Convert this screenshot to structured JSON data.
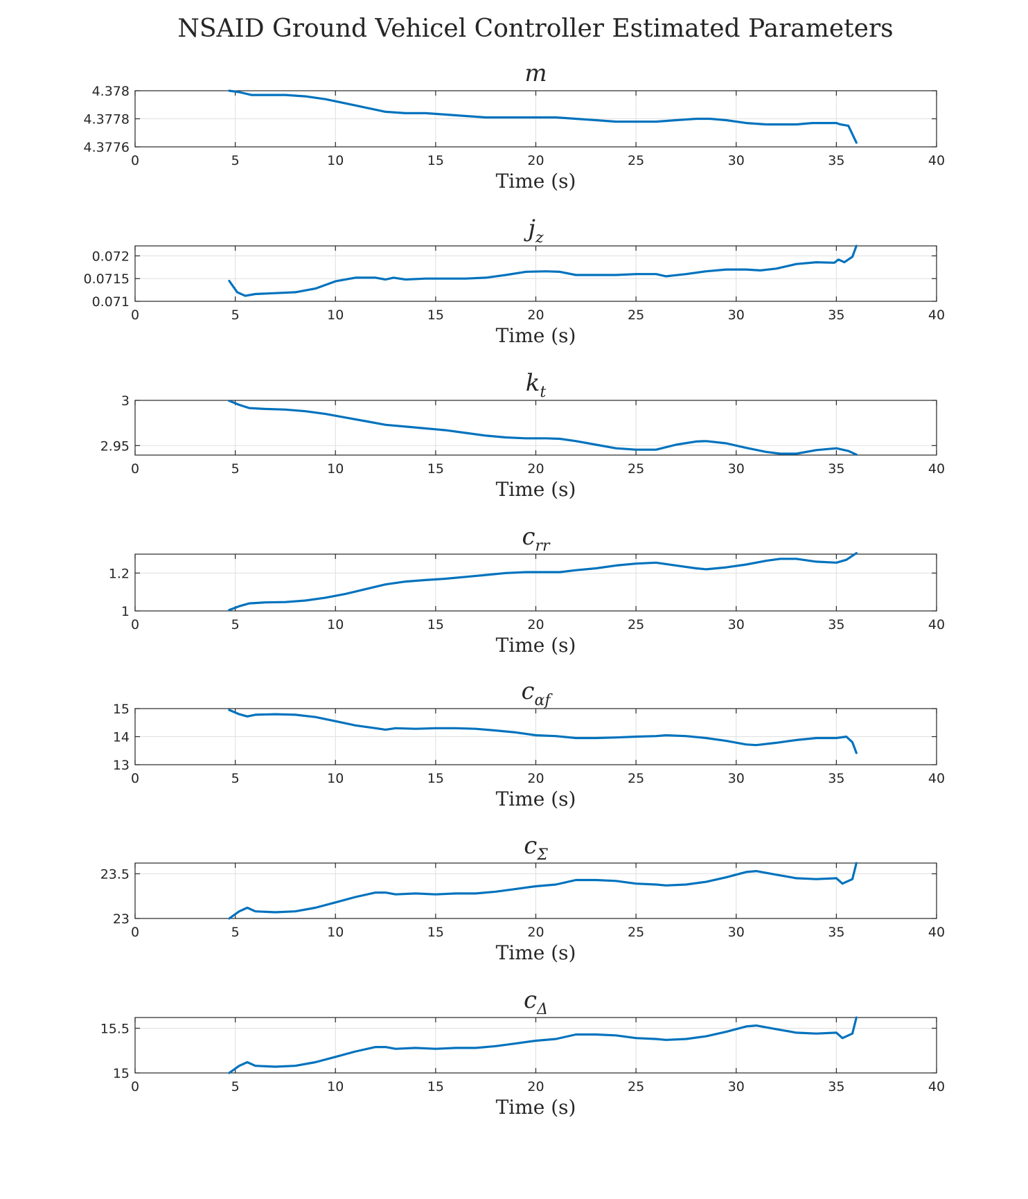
{
  "figure_title": "NSAID Ground Vehicel Controller Estimated Parameters",
  "colors": {
    "line": "#0072BD",
    "grid": "#dfdfdf",
    "axis": "#262626"
  },
  "chart_data": [
    {
      "type": "line",
      "title_main": "m",
      "title_sub": "",
      "xlabel": "Time (s)",
      "ylabel": "",
      "xlim": [
        0,
        40
      ],
      "ylim": [
        4.3776,
        4.378
      ],
      "xticks": [
        0,
        5,
        10,
        15,
        20,
        25,
        30,
        35,
        40
      ],
      "yticks": [
        4.3776,
        4.3778,
        4.378
      ],
      "ytick_labels": [
        "4.3776",
        "4.3778",
        "4.378"
      ],
      "grid": true,
      "series": [
        {
          "x": [
            4.7,
            5.2,
            5.8,
            6.5,
            7.5,
            8.5,
            9.5,
            10.5,
            11.5,
            12.5,
            13.5,
            14.5,
            15.5,
            16.5,
            17.5,
            18.5,
            19.5,
            20.5,
            21.0,
            22.0,
            23.0,
            24.0,
            25.0,
            26.0,
            27.0,
            28.0,
            28.7,
            29.5,
            30.5,
            31.5,
            32.2,
            33.0,
            33.8,
            35.0,
            35.2,
            35.6,
            36.0
          ],
          "y": [
            4.378,
            4.37799,
            4.37797,
            4.37797,
            4.37797,
            4.37796,
            4.37794,
            4.37791,
            4.37788,
            4.37785,
            4.37784,
            4.37784,
            4.37783,
            4.37782,
            4.37781,
            4.37781,
            4.37781,
            4.37781,
            4.37781,
            4.3778,
            4.37779,
            4.37778,
            4.37778,
            4.37778,
            4.37779,
            4.3778,
            4.3778,
            4.37779,
            4.37777,
            4.37776,
            4.37776,
            4.37776,
            4.37777,
            4.37777,
            4.37776,
            4.37775,
            4.37763
          ]
        }
      ]
    },
    {
      "type": "line",
      "title_main": "j",
      "title_sub": "z",
      "xlabel": "Time (s)",
      "ylabel": "",
      "xlim": [
        0,
        40
      ],
      "ylim": [
        0.071,
        0.07222
      ],
      "xticks": [
        0,
        5,
        10,
        15,
        20,
        25,
        30,
        35,
        40
      ],
      "yticks": [
        0.071,
        0.0715,
        0.072
      ],
      "ytick_labels": [
        "0.071",
        "0.0715",
        "0.072"
      ],
      "grid": true,
      "series": [
        {
          "x": [
            4.7,
            5.1,
            5.5,
            6.0,
            7.0,
            8.0,
            9.0,
            10.0,
            11.0,
            12.0,
            12.5,
            12.9,
            13.5,
            14.5,
            15.5,
            16.5,
            17.5,
            18.5,
            19.5,
            20.5,
            21.2,
            22.0,
            23.0,
            24.0,
            25.0,
            26.0,
            26.5,
            27.5,
            28.5,
            29.5,
            30.5,
            31.2,
            32.0,
            33.0,
            34.0,
            34.9,
            35.1,
            35.4,
            35.8,
            36.0
          ],
          "y": [
            0.07145,
            0.0712,
            0.07112,
            0.07116,
            0.07118,
            0.0712,
            0.07128,
            0.07144,
            0.07152,
            0.07152,
            0.07148,
            0.07152,
            0.07148,
            0.0715,
            0.0715,
            0.0715,
            0.07152,
            0.07158,
            0.07165,
            0.07166,
            0.07165,
            0.07158,
            0.07158,
            0.07158,
            0.0716,
            0.0716,
            0.07155,
            0.0716,
            0.07166,
            0.0717,
            0.0717,
            0.07168,
            0.07172,
            0.07182,
            0.07186,
            0.07185,
            0.07192,
            0.07186,
            0.07198,
            0.07222
          ]
        }
      ]
    },
    {
      "type": "line",
      "title_main": "k",
      "title_sub": "t",
      "xlabel": "Time (s)",
      "ylabel": "",
      "xlim": [
        0,
        40
      ],
      "ylim": [
        2.9395,
        3
      ],
      "xticks": [
        0,
        5,
        10,
        15,
        20,
        25,
        30,
        35,
        40
      ],
      "yticks": [
        2.95,
        3
      ],
      "ytick_labels": [
        "2.95",
        "3"
      ],
      "grid": true,
      "series": [
        {
          "x": [
            4.7,
            5.2,
            5.7,
            6.5,
            7.5,
            8.5,
            9.5,
            10.5,
            11.5,
            12.5,
            13.5,
            14.5,
            15.5,
            16.5,
            17.5,
            18.5,
            19.5,
            20.5,
            21.2,
            22.0,
            23.0,
            24.0,
            25.0,
            26.0,
            27.0,
            28.0,
            28.5,
            29.5,
            30.5,
            31.5,
            32.2,
            33.0,
            34.0,
            35.0,
            35.6,
            36.0
          ],
          "y": [
            2.9995,
            2.995,
            2.9915,
            2.9905,
            2.9898,
            2.988,
            2.985,
            2.981,
            2.977,
            2.973,
            2.971,
            2.969,
            2.967,
            2.964,
            2.961,
            2.959,
            2.958,
            2.958,
            2.9575,
            2.955,
            2.951,
            2.947,
            2.9455,
            2.9455,
            2.951,
            2.9545,
            2.955,
            2.9525,
            2.9475,
            2.943,
            2.941,
            2.941,
            2.945,
            2.947,
            2.944,
            2.94
          ]
        }
      ]
    },
    {
      "type": "line",
      "title_main": "c",
      "title_sub": "rr",
      "xlabel": "Time (s)",
      "ylabel": "",
      "xlim": [
        0,
        40
      ],
      "ylim": [
        1,
        1.3
      ],
      "xticks": [
        0,
        5,
        10,
        15,
        20,
        25,
        30,
        35,
        40
      ],
      "yticks": [
        1,
        1.2
      ],
      "ytick_labels": [
        "1",
        "1.2"
      ],
      "grid": true,
      "series": [
        {
          "x": [
            4.7,
            5.2,
            5.7,
            6.5,
            7.5,
            8.5,
            9.5,
            10.5,
            11.5,
            12.5,
            13.5,
            14.5,
            15.5,
            16.5,
            17.5,
            18.5,
            19.5,
            20.5,
            21.2,
            22.0,
            23.0,
            24.0,
            25.0,
            26.0,
            27.0,
            28.0,
            28.5,
            29.5,
            30.5,
            31.5,
            32.2,
            33.0,
            34.0,
            35.0,
            35.5,
            36.0
          ],
          "y": [
            1.005,
            1.025,
            1.04,
            1.045,
            1.047,
            1.055,
            1.07,
            1.09,
            1.115,
            1.14,
            1.155,
            1.163,
            1.17,
            1.18,
            1.19,
            1.2,
            1.205,
            1.205,
            1.205,
            1.215,
            1.225,
            1.24,
            1.25,
            1.255,
            1.24,
            1.225,
            1.22,
            1.23,
            1.245,
            1.265,
            1.275,
            1.275,
            1.26,
            1.255,
            1.27,
            1.305
          ]
        }
      ]
    },
    {
      "type": "line",
      "title_main": "c",
      "title_sub": "αf",
      "xlabel": "Time (s)",
      "ylabel": "",
      "xlim": [
        0,
        40
      ],
      "ylim": [
        13,
        15
      ],
      "xticks": [
        0,
        5,
        10,
        15,
        20,
        25,
        30,
        35,
        40
      ],
      "yticks": [
        13,
        14,
        15
      ],
      "ytick_labels": [
        "13",
        "14",
        "15"
      ],
      "grid": true,
      "series": [
        {
          "x": [
            4.7,
            5.2,
            5.6,
            6.0,
            7.0,
            8.0,
            9.0,
            10.0,
            11.0,
            12.0,
            12.5,
            13.0,
            14.0,
            15.0,
            16.0,
            17.0,
            18.0,
            19.0,
            20.0,
            21.0,
            22.0,
            23.0,
            24.0,
            25.0,
            26.0,
            26.5,
            27.5,
            28.5,
            29.5,
            30.5,
            31.0,
            32.0,
            33.0,
            34.0,
            35.0,
            35.5,
            35.8,
            36.0
          ],
          "y": [
            14.95,
            14.8,
            14.72,
            14.78,
            14.8,
            14.78,
            14.7,
            14.55,
            14.4,
            14.3,
            14.25,
            14.3,
            14.28,
            14.3,
            14.3,
            14.28,
            14.22,
            14.15,
            14.05,
            14.02,
            13.95,
            13.95,
            13.97,
            14.0,
            14.02,
            14.05,
            14.02,
            13.95,
            13.85,
            13.72,
            13.7,
            13.78,
            13.88,
            13.95,
            13.95,
            14.0,
            13.8,
            13.42
          ]
        }
      ]
    },
    {
      "type": "line",
      "title_main": "c",
      "title_sub": "Σ",
      "xlabel": "Time (s)",
      "ylabel": "",
      "xlim": [
        0,
        40
      ],
      "ylim": [
        23,
        23.62
      ],
      "xticks": [
        0,
        5,
        10,
        15,
        20,
        25,
        30,
        35,
        40
      ],
      "yticks": [
        23,
        23.5
      ],
      "ytick_labels": [
        "23",
        "23.5"
      ],
      "grid": true,
      "series": [
        {
          "x": [
            4.7,
            5.2,
            5.6,
            6.0,
            7.0,
            8.0,
            9.0,
            10.0,
            11.0,
            12.0,
            12.5,
            13.0,
            14.0,
            15.0,
            16.0,
            17.0,
            18.0,
            19.0,
            20.0,
            21.0,
            22.0,
            23.0,
            24.0,
            25.0,
            26.0,
            26.5,
            27.5,
            28.5,
            29.5,
            30.5,
            31.0,
            32.0,
            33.0,
            34.0,
            35.0,
            35.3,
            35.8,
            36.0
          ],
          "y": [
            23.0,
            23.08,
            23.12,
            23.08,
            23.07,
            23.08,
            23.12,
            23.18,
            23.24,
            23.29,
            23.29,
            23.27,
            23.28,
            23.27,
            23.28,
            23.28,
            23.3,
            23.33,
            23.36,
            23.38,
            23.43,
            23.43,
            23.42,
            23.39,
            23.38,
            23.37,
            23.38,
            23.41,
            23.46,
            23.52,
            23.53,
            23.49,
            23.45,
            23.44,
            23.45,
            23.39,
            23.44,
            23.62
          ]
        }
      ]
    },
    {
      "type": "line",
      "title_main": "c",
      "title_sub": "Δ",
      "xlabel": "Time (s)",
      "ylabel": "",
      "xlim": [
        0,
        40
      ],
      "ylim": [
        15,
        15.62
      ],
      "xticks": [
        0,
        5,
        10,
        15,
        20,
        25,
        30,
        35,
        40
      ],
      "yticks": [
        15,
        15.5
      ],
      "ytick_labels": [
        "15",
        "15.5"
      ],
      "grid": true,
      "series": [
        {
          "x": [
            4.7,
            5.2,
            5.6,
            6.0,
            7.0,
            8.0,
            9.0,
            10.0,
            11.0,
            12.0,
            12.5,
            13.0,
            14.0,
            15.0,
            16.0,
            17.0,
            18.0,
            19.0,
            20.0,
            21.0,
            22.0,
            23.0,
            24.0,
            25.0,
            26.0,
            26.5,
            27.5,
            28.5,
            29.5,
            30.5,
            31.0,
            32.0,
            33.0,
            34.0,
            35.0,
            35.3,
            35.8,
            36.0
          ],
          "y": [
            15.0,
            15.08,
            15.12,
            15.08,
            15.07,
            15.08,
            15.12,
            15.18,
            15.24,
            15.29,
            15.29,
            15.27,
            15.28,
            15.27,
            15.28,
            15.28,
            15.3,
            15.33,
            15.36,
            15.38,
            15.43,
            15.43,
            15.42,
            15.39,
            15.38,
            15.37,
            15.38,
            15.41,
            15.46,
            15.52,
            15.53,
            15.49,
            15.45,
            15.44,
            15.45,
            15.39,
            15.44,
            15.62
          ]
        }
      ]
    }
  ]
}
